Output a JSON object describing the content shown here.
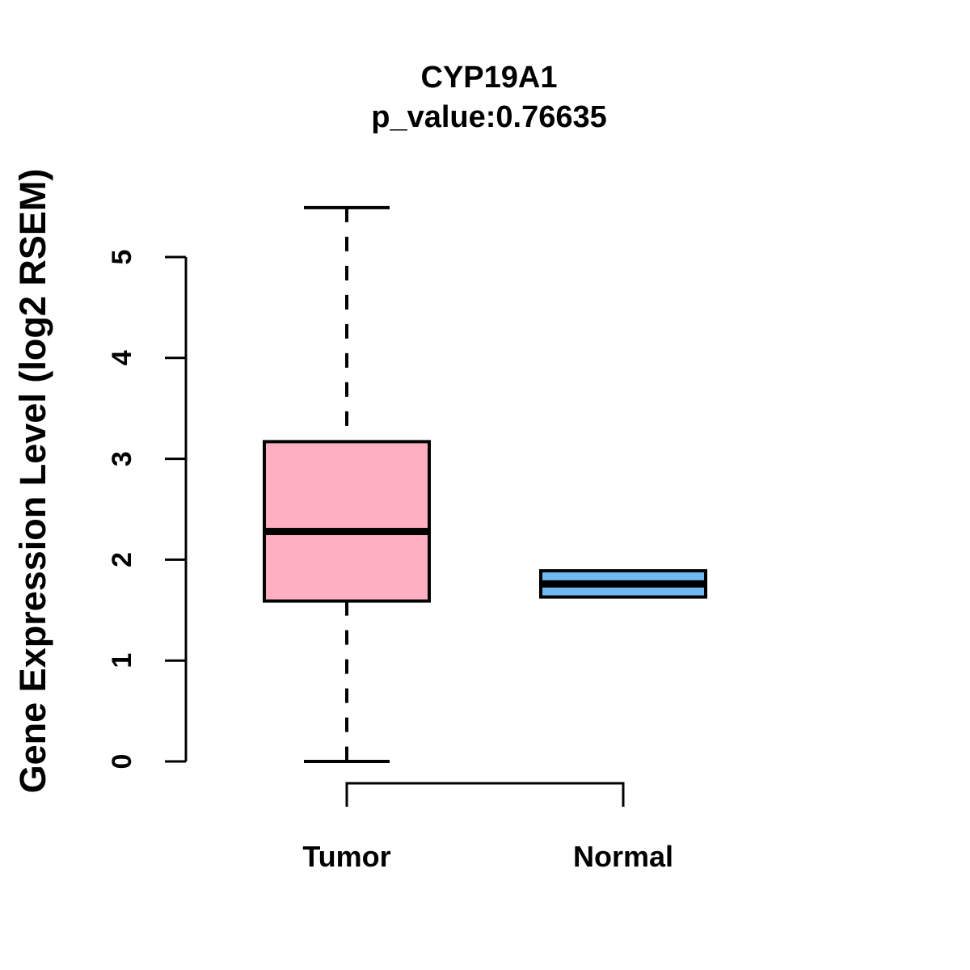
{
  "title": "CYP19A1",
  "subtitle": "p_value:0.76635",
  "y_axis": {
    "label": "Gene Expression Level (log2 RSEM)",
    "ticks": [
      0,
      1,
      2,
      3,
      4,
      5
    ]
  },
  "categories": [
    "Tumor",
    "Normal"
  ],
  "colors": {
    "tumor_fill": "#FFAFC2",
    "normal_fill": "#6EB9F4",
    "line": "#000000",
    "background": "#FFFFFF"
  },
  "chart_data": {
    "type": "boxplot",
    "title": "CYP19A1",
    "subtitle": "p_value:0.76635",
    "xlabel": "",
    "ylabel": "Gene Expression Level (log2 RSEM)",
    "ylim": [
      0,
      5.5
    ],
    "yticks": [
      0,
      1,
      2,
      3,
      4,
      5
    ],
    "categories": [
      "Tumor",
      "Normal"
    ],
    "grid": false,
    "legend": "none",
    "series": [
      {
        "name": "Tumor",
        "lower_whisker": 0.0,
        "q1": 1.59,
        "median": 2.28,
        "q3": 3.17,
        "upper_whisker": 5.49,
        "fill": "#FFAFC2",
        "whisker_style": "dashed"
      },
      {
        "name": "Normal",
        "lower_whisker": 1.63,
        "q1": 1.63,
        "median": 1.76,
        "q3": 1.89,
        "upper_whisker": 1.89,
        "fill": "#6EB9F4",
        "whisker_style": "dashed"
      }
    ]
  }
}
